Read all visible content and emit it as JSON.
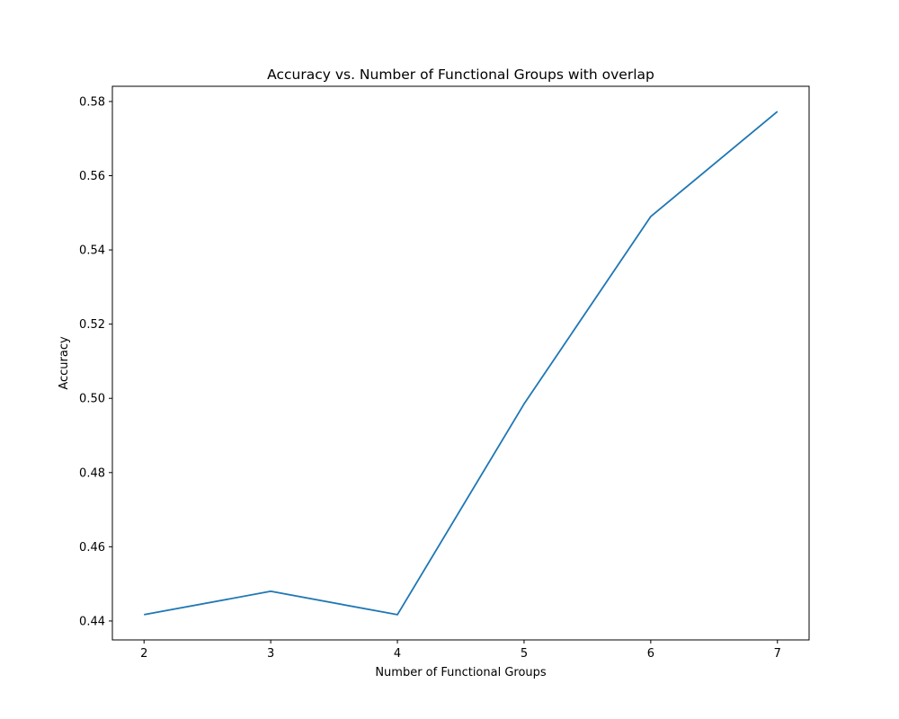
{
  "chart_data": {
    "type": "line",
    "title": "Accuracy vs. Number of Functional Groups with overlap",
    "xlabel": "Number of Functional Groups",
    "ylabel": "Accuracy",
    "x": [
      2,
      3,
      4,
      5,
      6,
      7
    ],
    "series": [
      {
        "values": [
          0.4417,
          0.448,
          0.4417,
          0.4985,
          0.549,
          0.5773
        ]
      }
    ],
    "xticks": [
      "2",
      "3",
      "4",
      "5",
      "6",
      "7"
    ],
    "yticks": [
      "0.44",
      "0.46",
      "0.48",
      "0.50",
      "0.52",
      "0.54",
      "0.56",
      "0.58"
    ],
    "xlim": [
      1.75,
      7.25
    ],
    "ylim": [
      0.4349,
      0.5841
    ],
    "grid": false,
    "line_color": "#1f77b4"
  }
}
